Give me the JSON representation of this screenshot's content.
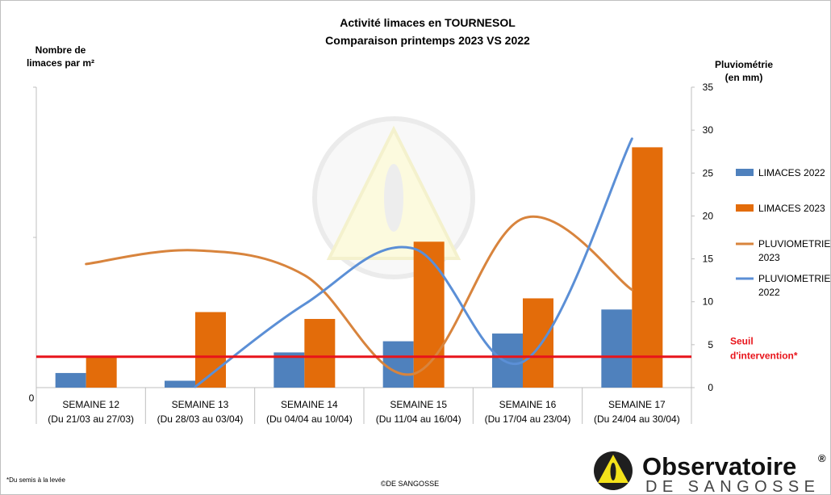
{
  "chart_data": {
    "type": "bar",
    "title_line1": "Activité limaces en TOURNESOL",
    "title_line2": "Comparaison printemps 2023 VS 2022",
    "ylabel_left_line1": "Nombre de",
    "ylabel_left_line2": "limaces par m²",
    "ylabel_right_line1": "Pluviométrie",
    "ylabel_right_line2": "(en mm)",
    "left_axis_tick": "0",
    "right_ylim": [
      0,
      35
    ],
    "right_ticks": [
      "0",
      "5",
      "10",
      "15",
      "20",
      "25",
      "30",
      "35"
    ],
    "categories": [
      {
        "name": "SEMAINE 12",
        "range": "(Du 21/03 au 27/03)"
      },
      {
        "name": "SEMAINE 13",
        "range": "(Du 28/03 au 03/04)"
      },
      {
        "name": "SEMAINE 14",
        "range": "(Du 04/04 au 10/04)"
      },
      {
        "name": "SEMAINE 15",
        "range": "(Du 11/04 au 16/04)"
      },
      {
        "name": "SEMAINE 16",
        "range": "(Du 17/04 au 23/04)"
      },
      {
        "name": "SEMAINE 17",
        "range": "(Du 24/04 au 30/04)"
      }
    ],
    "bar_series": [
      {
        "name": "LIMACES 2022",
        "color": "#4f81bd",
        "values": [
          1.7,
          0.8,
          4.1,
          5.4,
          6.3,
          9.1
        ]
      },
      {
        "name": "LIMACES 2023",
        "color": "#e36c0a",
        "values": [
          3.6,
          8.8,
          8.0,
          17.0,
          10.4,
          28.0
        ]
      }
    ],
    "line_series": [
      {
        "name_line1": "PLUVIOMETRIE",
        "name_line2": "2023",
        "color": "#d8843d",
        "values": [
          14.4,
          16.0,
          13.1,
          1.6,
          19.7,
          11.4
        ]
      },
      {
        "name_line1": "PLUVIOMETRIE",
        "name_line2": "2022",
        "color": "#5b8fd6",
        "values": [
          null,
          0.1,
          9.7,
          16.2,
          3.0,
          29.0
        ]
      }
    ],
    "threshold": {
      "value": 3.6,
      "label_line1": "Seuil",
      "label_line2": "d'intervention*",
      "color": "#e8141b"
    },
    "footnote": "*Du semis à la levée",
    "copyright": "©DE SANGOSSE",
    "logo_line1": "Observatoire",
    "logo_registered": "®",
    "logo_line2": "DE SANGOSSE"
  }
}
